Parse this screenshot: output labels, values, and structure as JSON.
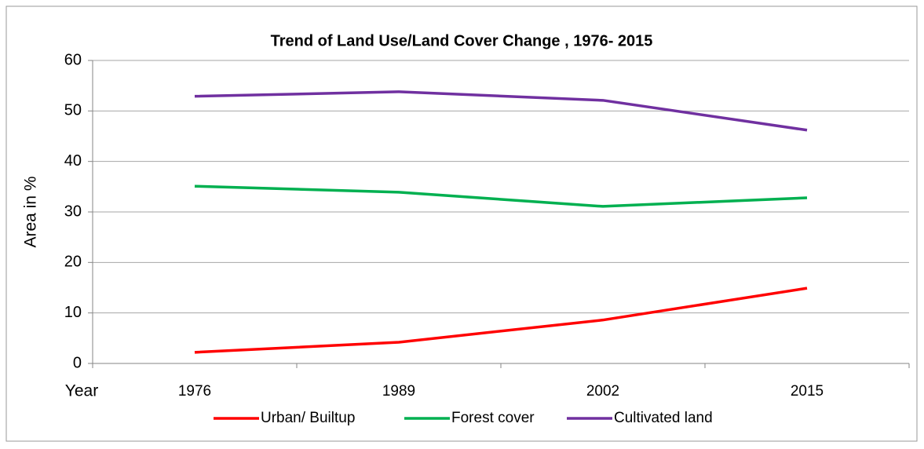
{
  "chart_data": {
    "type": "line",
    "title": "Trend  of Land Use/Land Cover Change , 1976- 2015",
    "x_label": "Year",
    "y_label": "Area in %",
    "categories": [
      "1976",
      "1989",
      "2002",
      "2015"
    ],
    "series": [
      {
        "name": "Urban/ Builtup",
        "color": "#ff0000",
        "values": [
          2.2,
          4.2,
          8.6,
          14.9
        ]
      },
      {
        "name": "Forest cover",
        "color": "#00b050",
        "values": [
          35.1,
          33.9,
          31.1,
          32.8
        ]
      },
      {
        "name": "Cultivated land",
        "color": "#7030a0",
        "values": [
          52.9,
          53.8,
          52.1,
          46.2
        ]
      }
    ],
    "ylim": [
      0,
      60
    ],
    "yticks": [
      0,
      10,
      20,
      30,
      40,
      50,
      60
    ],
    "grid": true,
    "legend": "bottom"
  }
}
